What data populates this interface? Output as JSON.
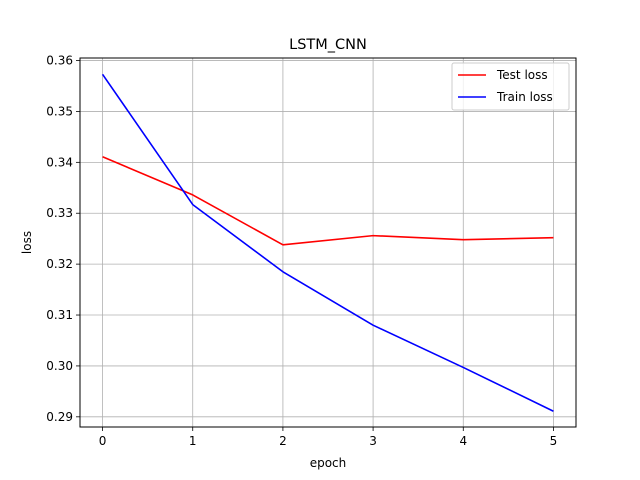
{
  "chart_data": {
    "type": "line",
    "title": "LSTM_CNN",
    "xlabel": "epoch",
    "ylabel": "loss",
    "x": [
      0,
      1,
      2,
      3,
      4,
      5
    ],
    "xticks": [
      "0",
      "1",
      "2",
      "3",
      "4",
      "5"
    ],
    "yticks": [
      "0.29",
      "0.30",
      "0.31",
      "0.32",
      "0.33",
      "0.34",
      "0.35",
      "0.36"
    ],
    "xlim": [
      -0.25,
      5.25
    ],
    "ylim": [
      0.288,
      0.3605
    ],
    "grid": true,
    "legend_position": "top-right",
    "series": [
      {
        "name": "Test loss",
        "color": "#ff0000",
        "values": [
          0.3411,
          0.3336,
          0.3238,
          0.3256,
          0.3248,
          0.3252
        ]
      },
      {
        "name": "Train loss",
        "color": "#0000ff",
        "values": [
          0.3573,
          0.3317,
          0.3185,
          0.308,
          0.2997,
          0.2911
        ]
      }
    ]
  }
}
